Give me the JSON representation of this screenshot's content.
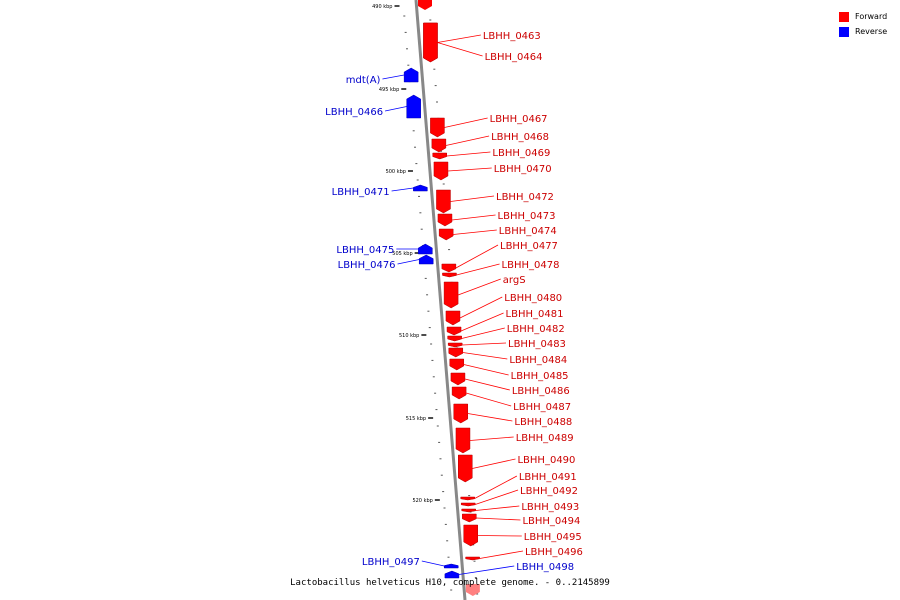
{
  "legend": [
    {
      "label": "Forward",
      "color": "#ff0000"
    },
    {
      "label": "Reverse",
      "color": "#0000ff"
    }
  ],
  "caption": "Lactobacillus helveticus H10, complete genome. - 0..2145899",
  "colors": {
    "forward": "#ff0000",
    "reverse": "#0000ff",
    "forward_text": "#cc0000",
    "reverse_text": "#0000cc",
    "axis": "#888888"
  },
  "ticks": [
    "490 kbp",
    "495 kbp",
    "500 kbp",
    "505 kbp",
    "510 kbp",
    "515 kbp",
    "520 kbp"
  ],
  "forward_genes": [
    "LBHH_0463",
    "LBHH_0464",
    "LBHH_0467",
    "LBHH_0468",
    "LBHH_0469",
    "LBHH_0470",
    "LBHH_0472",
    "LBHH_0473",
    "LBHH_0474",
    "LBHH_0477",
    "LBHH_0478",
    "argS",
    "LBHH_0480",
    "LBHH_0481",
    "LBHH_0482",
    "LBHH_0483",
    "LBHH_0484",
    "LBHH_0485",
    "LBHH_0486",
    "LBHH_0487",
    "LBHH_0488",
    "LBHH_0489",
    "LBHH_0490",
    "LBHH_0491",
    "LBHH_0492",
    "LBHH_0493",
    "LBHH_0494",
    "LBHH_0495",
    "LBHH_0496"
  ],
  "reverse_genes": [
    "mdt(A)",
    "LBHH_0466",
    "LBHH_0471",
    "LBHH_0475",
    "LBHH_0476",
    "LBHH_0497",
    "LBHH_0498"
  ]
}
